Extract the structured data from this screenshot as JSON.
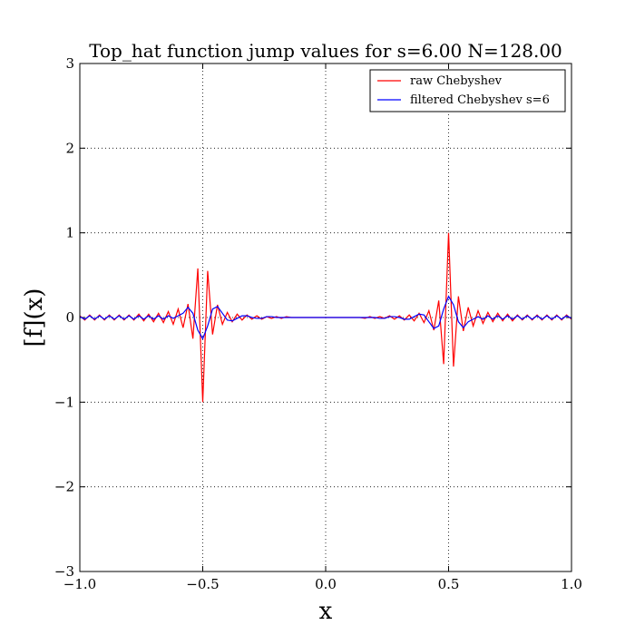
{
  "chart_data": {
    "type": "line",
    "title": "Top_hat function jump values for s=6.00 N=128.00",
    "xlabel": "x",
    "ylabel": "[f](x)",
    "x": [
      -1.0,
      -0.98,
      -0.96,
      -0.94,
      -0.92,
      -0.9,
      -0.88,
      -0.86,
      -0.84,
      -0.82,
      -0.8,
      -0.78,
      -0.76,
      -0.74,
      -0.72,
      -0.7,
      -0.68,
      -0.66,
      -0.64,
      -0.62,
      -0.6,
      -0.58,
      -0.56,
      -0.54,
      -0.52,
      -0.5,
      -0.48,
      -0.46,
      -0.44,
      -0.42,
      -0.4,
      -0.38,
      -0.36,
      -0.34,
      -0.32,
      -0.3,
      -0.28,
      -0.26,
      -0.24,
      -0.22,
      -0.2,
      -0.18,
      -0.16,
      -0.14,
      -0.12,
      -0.1,
      -0.08,
      -0.06,
      -0.04,
      -0.02,
      0.0,
      0.02,
      0.04,
      0.06,
      0.08,
      0.1,
      0.12,
      0.14,
      0.16,
      0.18,
      0.2,
      0.22,
      0.24,
      0.26,
      0.28,
      0.3,
      0.32,
      0.34,
      0.36,
      0.38,
      0.4,
      0.42,
      0.44,
      0.46,
      0.48,
      0.5,
      0.52,
      0.54,
      0.56,
      0.58,
      0.6,
      0.62,
      0.64,
      0.66,
      0.68,
      0.7,
      0.72,
      0.74,
      0.76,
      0.78,
      0.8,
      0.82,
      0.84,
      0.86,
      0.88,
      0.9,
      0.92,
      0.94,
      0.96,
      0.98,
      1.0
    ],
    "series": [
      {
        "name": "raw Chebyshev",
        "color": "#ff0000",
        "values": [
          0.02,
          -0.03,
          0.03,
          -0.03,
          0.03,
          -0.03,
          0.03,
          -0.03,
          0.03,
          -0.03,
          0.03,
          -0.03,
          0.04,
          -0.04,
          0.04,
          -0.05,
          0.05,
          -0.06,
          0.07,
          -0.08,
          0.1,
          -0.12,
          0.16,
          -0.25,
          0.58,
          -1.0,
          0.55,
          -0.2,
          0.15,
          -0.08,
          0.06,
          -0.05,
          0.04,
          -0.03,
          0.03,
          -0.02,
          0.02,
          -0.02,
          0.01,
          -0.01,
          0.01,
          -0.01,
          0.01,
          0,
          0,
          0,
          0,
          0,
          0,
          0,
          0,
          0,
          0,
          0,
          0,
          0,
          0,
          0,
          -0.01,
          0.01,
          -0.01,
          0.01,
          -0.01,
          0.02,
          -0.02,
          0.02,
          -0.03,
          0.03,
          -0.04,
          0.05,
          -0.06,
          0.08,
          -0.15,
          0.2,
          -0.55,
          1.0,
          -0.58,
          0.25,
          -0.16,
          0.12,
          -0.1,
          0.08,
          -0.07,
          0.06,
          -0.05,
          0.05,
          -0.04,
          0.04,
          -0.04,
          0.03,
          -0.03,
          0.03,
          -0.03,
          0.03,
          -0.03,
          0.03,
          -0.03,
          0.03,
          -0.03,
          0.03,
          -0.02
        ]
      },
      {
        "name": "filtered Chebyshev s=6",
        "color": "#0000ff",
        "values": [
          0.01,
          -0.02,
          0.02,
          -0.02,
          0.02,
          -0.02,
          0.02,
          -0.02,
          0.02,
          -0.02,
          0.02,
          -0.02,
          0.02,
          -0.02,
          0.02,
          -0.02,
          0.02,
          -0.02,
          0.02,
          -0.01,
          0.02,
          0.05,
          0.12,
          0.05,
          -0.15,
          -0.25,
          -0.1,
          0.1,
          0.13,
          0.05,
          -0.03,
          -0.04,
          -0.01,
          0.02,
          0.02,
          0,
          -0.01,
          -0.01,
          0.01,
          0.01,
          0,
          0,
          0,
          0,
          0,
          0,
          0,
          0,
          0,
          0,
          0,
          0,
          0,
          0,
          0,
          0,
          0,
          0,
          0,
          0,
          0,
          -0.01,
          -0.01,
          0.01,
          0.01,
          0,
          -0.02,
          -0.02,
          0.01,
          0.04,
          0.03,
          -0.05,
          -0.13,
          -0.1,
          0.1,
          0.25,
          0.15,
          -0.05,
          -0.12,
          -0.05,
          -0.02,
          0.01,
          -0.02,
          0.02,
          -0.02,
          0.02,
          -0.02,
          0.02,
          -0.02,
          0.02,
          -0.02,
          0.02,
          -0.02,
          0.02,
          -0.02,
          0.02,
          -0.02,
          0.02,
          -0.02,
          0.02,
          -0.01
        ]
      }
    ],
    "xlim": [
      -1.0,
      1.0
    ],
    "ylim": [
      -3,
      3
    ],
    "xticks": [
      {
        "value": -1.0,
        "label": "−1.0"
      },
      {
        "value": -0.5,
        "label": "−0.5"
      },
      {
        "value": 0.0,
        "label": "0.0"
      },
      {
        "value": 0.5,
        "label": "0.5"
      },
      {
        "value": 1.0,
        "label": "1.0"
      }
    ],
    "yticks": [
      {
        "value": -3,
        "label": "−3"
      },
      {
        "value": -2,
        "label": "−2"
      },
      {
        "value": -1,
        "label": "−1"
      },
      0,
      1,
      2,
      3
    ],
    "grid": true,
    "legend": "upper right"
  }
}
